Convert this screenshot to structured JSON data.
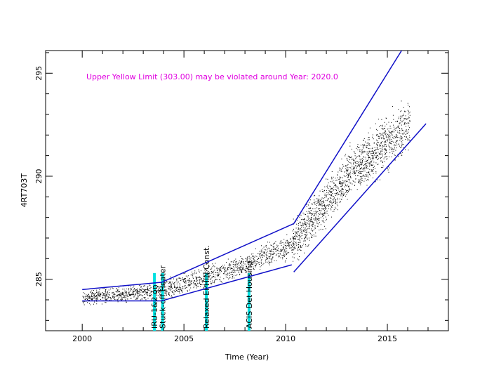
{
  "chart_data": {
    "type": "scatter",
    "xlabel": "Time (Year)",
    "ylabel": "4RT703T",
    "xlim": [
      1998.2,
      2018.0
    ],
    "ylim": [
      282.5,
      296.1
    ],
    "x_ticks": [
      "2000",
      "2005",
      "2010",
      "2015"
    ],
    "y_ticks": [
      "285",
      "290",
      "295"
    ],
    "annotation": "Upper Yellow  Limit (303.00) may be violated around Year: 2020.0",
    "colors": {
      "data": "#000000",
      "trend": "#1010c8",
      "annotation": "#e000e0",
      "event": "#00e0e0",
      "axis": "#000000"
    },
    "events": [
      {
        "label": "IRU-1&2 on",
        "x": 2003.55
      },
      {
        "label": "Stuck-off Heater",
        "x": 2003.95
      },
      {
        "label": "Relaxed EPHIN Const.",
        "x": 2006.1
      },
      {
        "label": "ACIS Det Housing",
        "x": 2008.2
      }
    ],
    "envelope_segments": [
      {
        "x": [
          2000.0,
          2003.9
        ],
        "y": [
          284.5,
          284.85
        ]
      },
      {
        "x": [
          2000.0,
          2003.9
        ],
        "y": [
          283.95,
          283.95
        ]
      },
      {
        "x": [
          2003.9,
          2010.4
        ],
        "y": [
          284.85,
          287.7
        ]
      },
      {
        "x": [
          2003.9,
          2010.3
        ],
        "y": [
          283.95,
          285.7
        ]
      },
      {
        "x": [
          2010.4,
          2015.7
        ],
        "y": [
          287.7,
          296.1
        ]
      },
      {
        "x": [
          2010.4,
          2016.9
        ],
        "y": [
          285.35,
          292.55
        ]
      }
    ],
    "density_bands": [
      {
        "x": [
          2000.0,
          2004.0
        ],
        "center": [
          284.1,
          284.5
        ],
        "spread": 0.3
      },
      {
        "x": [
          2004.0,
          2008.0
        ],
        "center": [
          284.5,
          285.7
        ],
        "spread": 0.45
      },
      {
        "x": [
          2008.0,
          2010.3
        ],
        "center": [
          285.7,
          286.7
        ],
        "spread": 0.5
      },
      {
        "x": [
          2010.3,
          2013.0
        ],
        "center": [
          286.7,
          290.0
        ],
        "spread": 0.9
      },
      {
        "x": [
          2013.0,
          2016.1
        ],
        "center": [
          290.0,
          292.6
        ],
        "spread": 1.1
      }
    ]
  }
}
